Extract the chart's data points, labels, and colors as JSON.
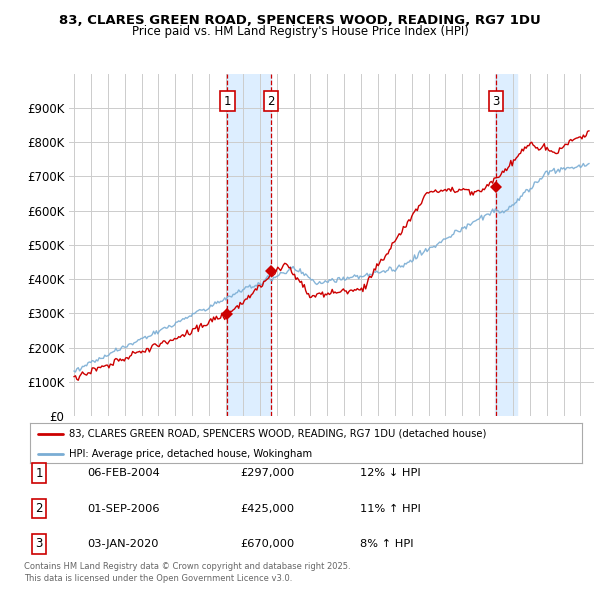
{
  "title_line1": "83, CLARES GREEN ROAD, SPENCERS WOOD, READING, RG7 1DU",
  "title_line2": "Price paid vs. HM Land Registry's House Price Index (HPI)",
  "legend_label_red": "83, CLARES GREEN ROAD, SPENCERS WOOD, READING, RG7 1DU (detached house)",
  "legend_label_blue": "HPI: Average price, detached house, Wokingham",
  "footer": "Contains HM Land Registry data © Crown copyright and database right 2025.\nThis data is licensed under the Open Government Licence v3.0.",
  "transactions": [
    {
      "num": "1",
      "date": "06-FEB-2004",
      "price": 297000,
      "pct": "12%",
      "dir": "↓",
      "x": 2004.08
    },
    {
      "num": "2",
      "date": "01-SEP-2006",
      "price": 425000,
      "pct": "11%",
      "dir": "↑",
      "x": 2006.67
    },
    {
      "num": "3",
      "date": "03-JAN-2020",
      "price": 670000,
      "pct": "8%",
      "dir": "↑",
      "x": 2020.01
    }
  ],
  "red_color": "#cc0000",
  "blue_color": "#7aadd4",
  "shade_color": "#ddeeff",
  "vline_color": "#cc0000",
  "grid_color": "#cccccc",
  "bg_color": "#ffffff",
  "ylim": [
    0,
    1000000
  ],
  "xlim_start": 1994.7,
  "xlim_end": 2025.8,
  "yticks": [
    0,
    100000,
    200000,
    300000,
    400000,
    500000,
    600000,
    700000,
    800000,
    900000
  ],
  "ytick_labels": [
    "£0",
    "£100K",
    "£200K",
    "£300K",
    "£400K",
    "£500K",
    "£600K",
    "£700K",
    "£800K",
    "£900K"
  ],
  "table_rows": [
    [
      "1",
      "06-FEB-2004",
      "£297,000",
      "12% ↓ HPI"
    ],
    [
      "2",
      "01-SEP-2006",
      "£425,000",
      "11% ↑ HPI"
    ],
    [
      "3",
      "03-JAN-2020",
      "£670,000",
      "8% ↑ HPI"
    ]
  ]
}
